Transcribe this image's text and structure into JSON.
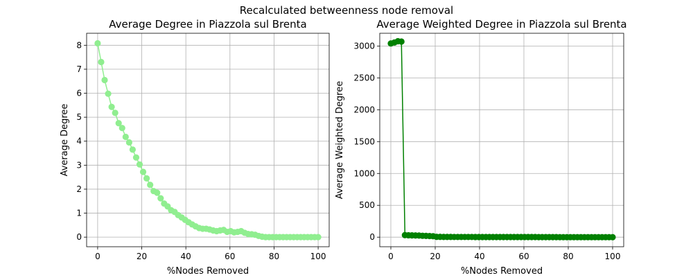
{
  "figure": {
    "suptitle": "Recalculated betweenness node removal"
  },
  "chart_data": [
    {
      "type": "line",
      "title": "Average Degree in Piazzola sul Brenta",
      "xlabel": "%Nodes Removed",
      "ylabel": "Average Degree",
      "xlim": [
        -5,
        105
      ],
      "ylim": [
        -0.4,
        8.5
      ],
      "xticks": [
        0,
        20,
        40,
        60,
        80,
        100
      ],
      "yticks": [
        0,
        1,
        2,
        3,
        4,
        5,
        6,
        7,
        8
      ],
      "grid": true,
      "color": "#90ee90",
      "series": [
        {
          "x": [
            0,
            1.59,
            3.17,
            4.76,
            6.35,
            7.94,
            9.52,
            11.11,
            12.7,
            14.29,
            15.87,
            17.46,
            19.05,
            20.63,
            22.22,
            23.81,
            25.4,
            26.98,
            28.57,
            30.16,
            31.75,
            33.33,
            34.92,
            36.51,
            38.1,
            39.68,
            41.27,
            42.86,
            44.44,
            46.03,
            47.62,
            49.21,
            50.79,
            52.38,
            53.97,
            55.56,
            57.14,
            58.73,
            60.32,
            61.9,
            63.49,
            65.08,
            66.67,
            68.25,
            69.84,
            71.43,
            73.02,
            74.6,
            76.19,
            77.78,
            79.37,
            80.95,
            82.54,
            84.13,
            85.71,
            87.3,
            88.89,
            90.48,
            92.06,
            93.65,
            95.24,
            96.83,
            98.41,
            100
          ],
          "y": [
            8.08,
            7.3,
            6.55,
            5.98,
            5.43,
            5.18,
            4.75,
            4.55,
            4.18,
            3.95,
            3.65,
            3.32,
            3.03,
            2.72,
            2.45,
            2.18,
            1.92,
            1.85,
            1.62,
            1.4,
            1.28,
            1.12,
            1.05,
            0.92,
            0.82,
            0.72,
            0.62,
            0.53,
            0.45,
            0.38,
            0.35,
            0.35,
            0.32,
            0.28,
            0.25,
            0.28,
            0.3,
            0.22,
            0.25,
            0.2,
            0.22,
            0.25,
            0.18,
            0.13,
            0.12,
            0.1,
            0.05,
            0.02,
            0,
            0,
            0,
            0,
            0,
            0,
            0,
            0,
            0,
            0,
            0,
            0,
            0,
            0,
            0,
            0
          ]
        }
      ]
    },
    {
      "type": "line",
      "title": "Average Weighted Degree in Piazzola sul Brenta",
      "xlabel": "%Nodes Removed",
      "ylabel": "Average Weighted Degree",
      "xlim": [
        -5,
        105
      ],
      "ylim": [
        -150,
        3200
      ],
      "xticks": [
        0,
        20,
        40,
        60,
        80,
        100
      ],
      "yticks": [
        0,
        500,
        1000,
        1500,
        2000,
        2500,
        3000
      ],
      "grid": true,
      "color": "#008000",
      "series": [
        {
          "x": [
            0,
            1.59,
            3.17,
            4.76,
            6.35,
            7.94,
            9.52,
            11.11,
            12.7,
            14.29,
            15.87,
            17.46,
            19.05,
            20.63,
            22.22,
            23.81,
            25.4,
            26.98,
            28.57,
            30.16,
            31.75,
            33.33,
            34.92,
            36.51,
            38.1,
            39.68,
            41.27,
            42.86,
            44.44,
            46.03,
            47.62,
            49.21,
            50.79,
            52.38,
            53.97,
            55.56,
            57.14,
            58.73,
            60.32,
            61.9,
            63.49,
            65.08,
            66.67,
            68.25,
            69.84,
            71.43,
            73.02,
            74.6,
            76.19,
            77.78,
            79.37,
            80.95,
            82.54,
            84.13,
            85.71,
            87.3,
            88.89,
            90.48,
            92.06,
            93.65,
            95.24,
            96.83,
            98.41,
            100
          ],
          "y": [
            3040,
            3055,
            3075,
            3070,
            32,
            30,
            28,
            27,
            25,
            22,
            20,
            18,
            15,
            5,
            5,
            4,
            4,
            4,
            3,
            3,
            3,
            3,
            3,
            3,
            2,
            2,
            2,
            2,
            2,
            2,
            2,
            2,
            2,
            2,
            2,
            2,
            2,
            2,
            2,
            2,
            2,
            2,
            1,
            1,
            1,
            1,
            1,
            1,
            0,
            0,
            0,
            0,
            0,
            0,
            0,
            0,
            0,
            0,
            0,
            0,
            0,
            0,
            0,
            0
          ]
        }
      ]
    }
  ]
}
